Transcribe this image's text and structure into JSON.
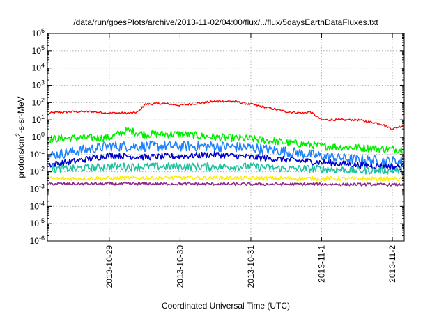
{
  "chart_data": {
    "type": "line",
    "title": "/data/run/goesPlots/archive/2013-11-02/04:00/flux/../flux/5daysEarthDataFluxes.txt",
    "xlabel": "Coordinated Universal Time (UTC)",
    "ylabel": {
      "base": "protons/cm",
      "sup": "2",
      "rest": "-s-sr-MeV"
    },
    "yscale": "log",
    "ylim": [
      1e-06,
      1000000.0
    ],
    "xlim": [
      "2013-10-28T03:00",
      "2013-11-02T04:00"
    ],
    "grid": true,
    "legend": "none",
    "x_ticks": [
      "2013-10-29",
      "2013-10-30",
      "2013-10-31",
      "2013-11-1",
      "2013-11-2"
    ],
    "y_ticks": [
      {
        "base": "10",
        "exp": "-6",
        "value": 1e-06
      },
      {
        "base": "10",
        "exp": "-5",
        "value": 1e-05
      },
      {
        "base": "10",
        "exp": "-4",
        "value": 0.0001
      },
      {
        "base": "10",
        "exp": "-3",
        "value": 0.001
      },
      {
        "base": "10",
        "exp": "-2",
        "value": 0.01
      },
      {
        "base": "10",
        "exp": "-1",
        "value": 0.1
      },
      {
        "base": "10",
        "exp": "0",
        "value": 1
      },
      {
        "base": "10",
        "exp": "1",
        "value": 10
      },
      {
        "base": "10",
        "exp": "2",
        "value": 100
      },
      {
        "base": "10",
        "exp": "3",
        "value": 1000
      },
      {
        "base": "10",
        "exp": "4",
        "value": 10000
      },
      {
        "base": "10",
        "exp": "5",
        "value": 100000
      },
      {
        "base": "10",
        "exp": "6",
        "value": 1000000
      }
    ],
    "series": [
      {
        "color": "#ff0000",
        "x": [
          "2013-10-28T03:00",
          "2013-10-28T12:00",
          "2013-10-28T18:00",
          "2013-10-29T00:00",
          "2013-10-29T08:00",
          "2013-10-29T10:00",
          "2013-10-29T12:00",
          "2013-10-29T18:00",
          "2013-10-30T00:00",
          "2013-10-30T12:00",
          "2013-10-30T18:00",
          "2013-10-30T22:00",
          "2013-10-31T00:00",
          "2013-10-31T12:00",
          "2013-10-31T18:00",
          "2013-10-31T20:00",
          "2013-11-01T00:00",
          "2013-11-01T12:00",
          "2013-11-01T20:00",
          "2013-11-02T00:00",
          "2013-11-02T04:00"
        ],
        "y": [
          25,
          30,
          30,
          25,
          25,
          30,
          80,
          90,
          70,
          120,
          120,
          90,
          80,
          30,
          25,
          30,
          10,
          10,
          6,
          3,
          5
        ]
      },
      {
        "color": "#00ee00",
        "x": [
          "2013-10-28T03:00",
          "2013-10-28T12:00",
          "2013-10-29T00:00",
          "2013-10-29T06:00",
          "2013-10-29T12:00",
          "2013-10-30T00:00",
          "2013-10-30T12:00",
          "2013-10-31T00:00",
          "2013-10-31T12:00",
          "2013-10-31T18:00",
          "2013-11-01T00:00",
          "2013-11-01T12:00",
          "2013-11-02T00:00",
          "2013-11-02T04:00"
        ],
        "y": [
          0.8,
          0.9,
          0.9,
          2.5,
          1.5,
          1.5,
          1.0,
          0.8,
          0.5,
          0.4,
          0.3,
          0.25,
          0.2,
          0.2
        ]
      },
      {
        "color": "#1e82ff",
        "x": [
          "2013-10-28T03:00",
          "2013-10-28T12:00",
          "2013-10-29T00:00",
          "2013-10-29T12:00",
          "2013-10-30T00:00",
          "2013-10-30T12:00",
          "2013-10-31T00:00",
          "2013-10-31T12:00",
          "2013-11-01T00:00",
          "2013-11-01T12:00",
          "2013-11-02T00:00",
          "2013-11-02T04:00"
        ],
        "y": [
          0.08,
          0.15,
          0.3,
          0.3,
          0.3,
          0.3,
          0.25,
          0.15,
          0.08,
          0.05,
          0.04,
          0.04
        ]
      },
      {
        "color": "#0000cc",
        "x": [
          "2013-10-28T03:00",
          "2013-10-28T12:00",
          "2013-10-29T00:00",
          "2013-10-29T12:00",
          "2013-10-30T00:00",
          "2013-10-30T12:00",
          "2013-10-31T00:00",
          "2013-10-31T12:00",
          "2013-11-01T00:00",
          "2013-11-01T12:00",
          "2013-11-02T00:00",
          "2013-11-02T04:00"
        ],
        "y": [
          0.025,
          0.04,
          0.09,
          0.07,
          0.08,
          0.1,
          0.07,
          0.05,
          0.035,
          0.025,
          0.02,
          0.02
        ]
      },
      {
        "color": "#20c0a0",
        "x": [
          "2013-10-28T03:00",
          "2013-10-28T12:00",
          "2013-10-29T00:00",
          "2013-10-29T12:00",
          "2013-10-30T00:00",
          "2013-10-30T12:00",
          "2013-10-31T00:00",
          "2013-10-31T12:00",
          "2013-11-01T00:00",
          "2013-11-01T12:00",
          "2013-11-02T00:00",
          "2013-11-02T04:00"
        ],
        "y": [
          0.015,
          0.015,
          0.02,
          0.02,
          0.02,
          0.02,
          0.02,
          0.015,
          0.015,
          0.012,
          0.012,
          0.012
        ]
      },
      {
        "color": "#ffee00",
        "x": [
          "2013-10-28T03:00",
          "2013-10-29T00:00",
          "2013-10-30T00:00",
          "2013-10-31T00:00",
          "2013-11-01T00:00",
          "2013-11-02T00:00",
          "2013-11-02T04:00"
        ],
        "y": [
          0.004,
          0.0042,
          0.0045,
          0.0042,
          0.004,
          0.0038,
          0.0038
        ]
      },
      {
        "color": "#8b2a8b",
        "x": [
          "2013-10-28T03:00",
          "2013-10-29T00:00",
          "2013-10-30T00:00",
          "2013-10-31T00:00",
          "2013-11-01T00:00",
          "2013-11-02T00:00",
          "2013-11-02T04:00"
        ],
        "y": [
          0.002,
          0.002,
          0.002,
          0.0019,
          0.0019,
          0.0018,
          0.0018
        ]
      }
    ]
  }
}
